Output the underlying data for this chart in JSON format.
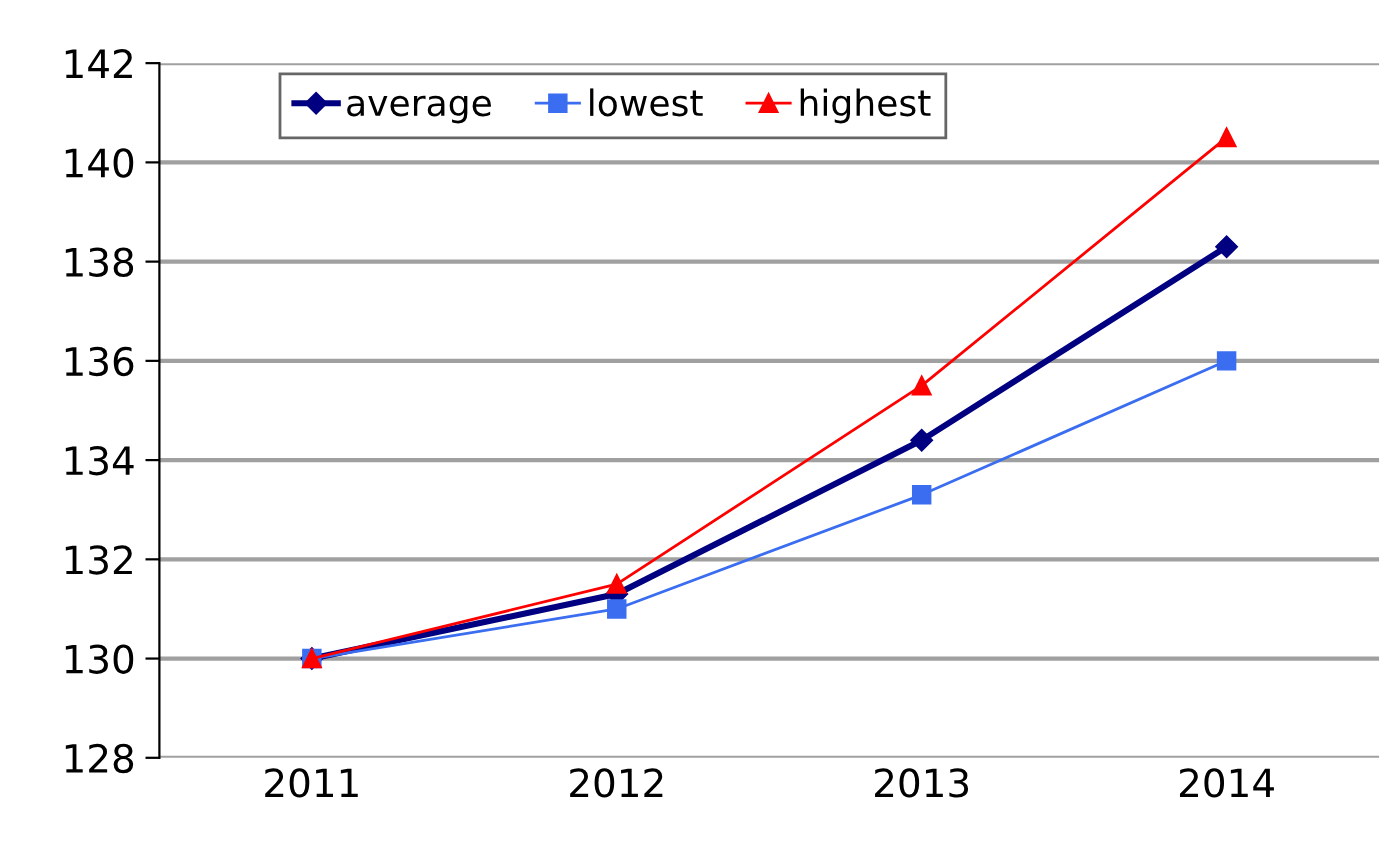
{
  "chart_data": {
    "type": "line",
    "categories": [
      "2011",
      "2012",
      "2013",
      "2014"
    ],
    "series": [
      {
        "name": "average",
        "color": "#000080",
        "marker": "diamond",
        "values": [
          130,
          131.3,
          134.4,
          138.3
        ]
      },
      {
        "name": "lowest",
        "color": "#3a6df0",
        "marker": "square",
        "values": [
          130,
          131.0,
          133.3,
          136.0
        ]
      },
      {
        "name": "highest",
        "color": "#ff0000",
        "marker": "triangle",
        "values": [
          130,
          131.5,
          135.5,
          140.5
        ]
      }
    ],
    "ylim": [
      128,
      142
    ],
    "yticks": [
      128,
      130,
      132,
      134,
      136,
      138,
      140,
      142
    ],
    "grid": "y",
    "legend": "top left"
  }
}
